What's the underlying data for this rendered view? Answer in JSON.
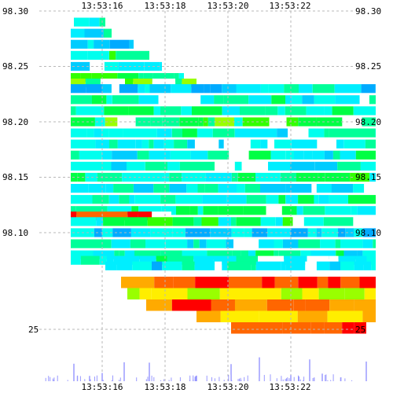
{
  "chart_data": {
    "type": "heatmap",
    "title": "",
    "xlabel": "",
    "ylabel": "",
    "x_ticks": [
      "13:53:16",
      "13:53:18",
      "13:53:20",
      "13:53:22"
    ],
    "y_ticks": [
      "98.30",
      "98.25",
      "98.20",
      "98.15",
      "98.10"
    ],
    "size_panel_tick": "25",
    "x_range_seconds_after_13_53_14": [
      0,
      10
    ],
    "y_range": [
      98.07,
      98.3
    ],
    "grid": true,
    "color_scale": "blue-cyan-green-yellow-red (low to high volume)",
    "heatmap_bands": [
      {
        "price": 98.29,
        "from": "13:53:15.1",
        "to": "13:53:16.1",
        "level": 0.38
      },
      {
        "price": 98.28,
        "from": "13:53:15.0",
        "to": "13:53:16.3",
        "level": 0.42
      },
      {
        "price": 98.27,
        "from": "13:53:15.0",
        "to": "13:53:17.0",
        "level": 0.3
      },
      {
        "price": 98.26,
        "from": "13:53:15.0",
        "to": "13:53:17.5",
        "level": 0.5
      },
      {
        "price": 98.25,
        "from": "13:53:15.0",
        "to": "13:53:17.9",
        "level": 0.4
      },
      {
        "price": 98.24,
        "from": "13:53:15.0",
        "to": "13:53:18.6",
        "level": 0.55
      },
      {
        "price": 98.235,
        "from": "13:53:15.0",
        "to": "13:53:19.0",
        "level": 0.6
      },
      {
        "price": 98.23,
        "from": "13:53:15.0",
        "to": "13:53:24.7",
        "level": 0.35
      },
      {
        "price": 98.22,
        "from": "13:53:15.0",
        "to": "13:53:24.7",
        "level": 0.45
      },
      {
        "price": 98.21,
        "from": "13:53:15.0",
        "to": "13:53:24.7",
        "level": 0.48
      },
      {
        "price": 98.2,
        "from": "13:53:15.0",
        "to": "13:53:24.7",
        "level": 0.58
      },
      {
        "price": 98.19,
        "from": "13:53:15.0",
        "to": "13:53:24.7",
        "level": 0.45
      },
      {
        "price": 98.18,
        "from": "13:53:15.0",
        "to": "13:53:24.7",
        "level": 0.4
      },
      {
        "price": 98.17,
        "from": "13:53:15.0",
        "to": "13:53:24.7",
        "level": 0.44
      },
      {
        "price": 98.16,
        "from": "13:53:15.0",
        "to": "13:53:24.7",
        "level": 0.42
      },
      {
        "price": 98.15,
        "from": "13:53:15.0",
        "to": "13:53:24.7",
        "level": 0.5
      },
      {
        "price": 98.14,
        "from": "13:53:15.0",
        "to": "13:53:24.7",
        "level": 0.4
      },
      {
        "price": 98.13,
        "from": "13:53:15.0",
        "to": "13:53:24.7",
        "level": 0.45
      },
      {
        "price": 98.12,
        "from": "13:53:15.0",
        "to": "13:53:24.7",
        "level": 0.48
      },
      {
        "price": 98.115,
        "from": "13:53:15.0",
        "to": "13:53:18.2",
        "level": 0.95
      },
      {
        "price": 98.11,
        "from": "13:53:15.0",
        "to": "13:53:24.7",
        "level": 0.5
      },
      {
        "price": 98.1,
        "from": "13:53:15.0",
        "to": "13:53:24.7",
        "level": 0.32
      },
      {
        "price": 98.09,
        "from": "13:53:15.0",
        "to": "13:53:24.7",
        "level": 0.4
      },
      {
        "price": 98.08,
        "from": "13:53:15.0",
        "to": "13:53:24.7",
        "level": 0.44
      },
      {
        "price": 98.075,
        "from": "13:53:15.0",
        "to": "13:53:24.7",
        "level": 0.46
      },
      {
        "price": 98.07,
        "from": "13:53:16.1",
        "to": "13:53:24.7",
        "level": 0.38
      }
    ],
    "lower_bands": [
      {
        "from": "13:53:16.6",
        "to": "13:53:24.7",
        "level": 0.95
      },
      {
        "from": "13:53:16.8",
        "to": "13:53:24.7",
        "level": 0.78
      },
      {
        "from": "13:53:17.4",
        "to": "13:53:24.7",
        "level": 0.92
      },
      {
        "from": "13:53:19.0",
        "to": "13:53:24.7",
        "level": 0.82
      },
      {
        "from": "13:53:20.1",
        "to": "13:53:24.4",
        "level": 0.98
      }
    ],
    "volume_spike_times": [
      "13:53:15.1",
      "13:53:15.6",
      "13:53:16.0",
      "13:53:16.7",
      "13:53:17.5",
      "13:53:19.0",
      "13:53:20.1",
      "13:53:21.0",
      "13:53:22.0",
      "13:53:22.6",
      "13:53:23.0",
      "13:53:24.4"
    ]
  }
}
